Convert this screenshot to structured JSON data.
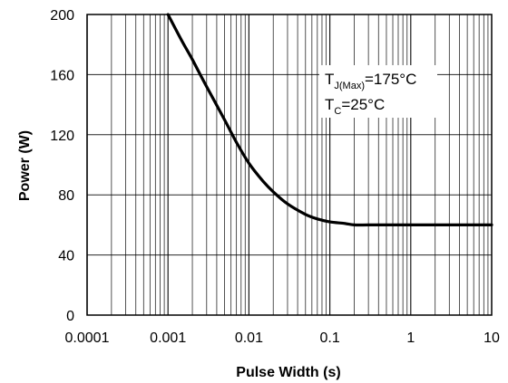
{
  "chart_data": {
    "type": "line",
    "title": "",
    "xlabel": "Pulse Width (s)",
    "ylabel": "Power (W)",
    "x_scale": "log",
    "xlim": [
      0.0001,
      10
    ],
    "ylim": [
      0,
      200
    ],
    "x_ticks": [
      0.0001,
      0.001,
      0.01,
      0.1,
      1,
      10
    ],
    "x_tick_labels": [
      "0.0001",
      "0.001",
      "0.01",
      "0.1",
      "1",
      "10"
    ],
    "y_ticks": [
      0,
      40,
      80,
      120,
      160,
      200
    ],
    "y_tick_labels": [
      "0",
      "40",
      "80",
      "120",
      "160",
      "200"
    ],
    "grid": true,
    "legend": "none",
    "series": [
      {
        "color": "#000000",
        "x": [
          0.001,
          0.0015,
          0.002,
          0.003,
          0.005,
          0.007,
          0.01,
          0.015,
          0.02,
          0.03,
          0.05,
          0.07,
          0.1,
          0.15,
          0.2,
          0.3,
          0.5,
          1,
          2,
          5,
          10
        ],
        "y": [
          200,
          182,
          170,
          152,
          130,
          115,
          101,
          89,
          82,
          74,
          67,
          64,
          62,
          61,
          60,
          60,
          60,
          60,
          60,
          60,
          60
        ]
      }
    ],
    "annotation": {
      "line1_main": "T",
      "line1_sub": "J(Max)",
      "line1_rest": "=175°C",
      "line2_main": "T",
      "line2_sub": "C",
      "line2_rest": "=25°C"
    }
  }
}
